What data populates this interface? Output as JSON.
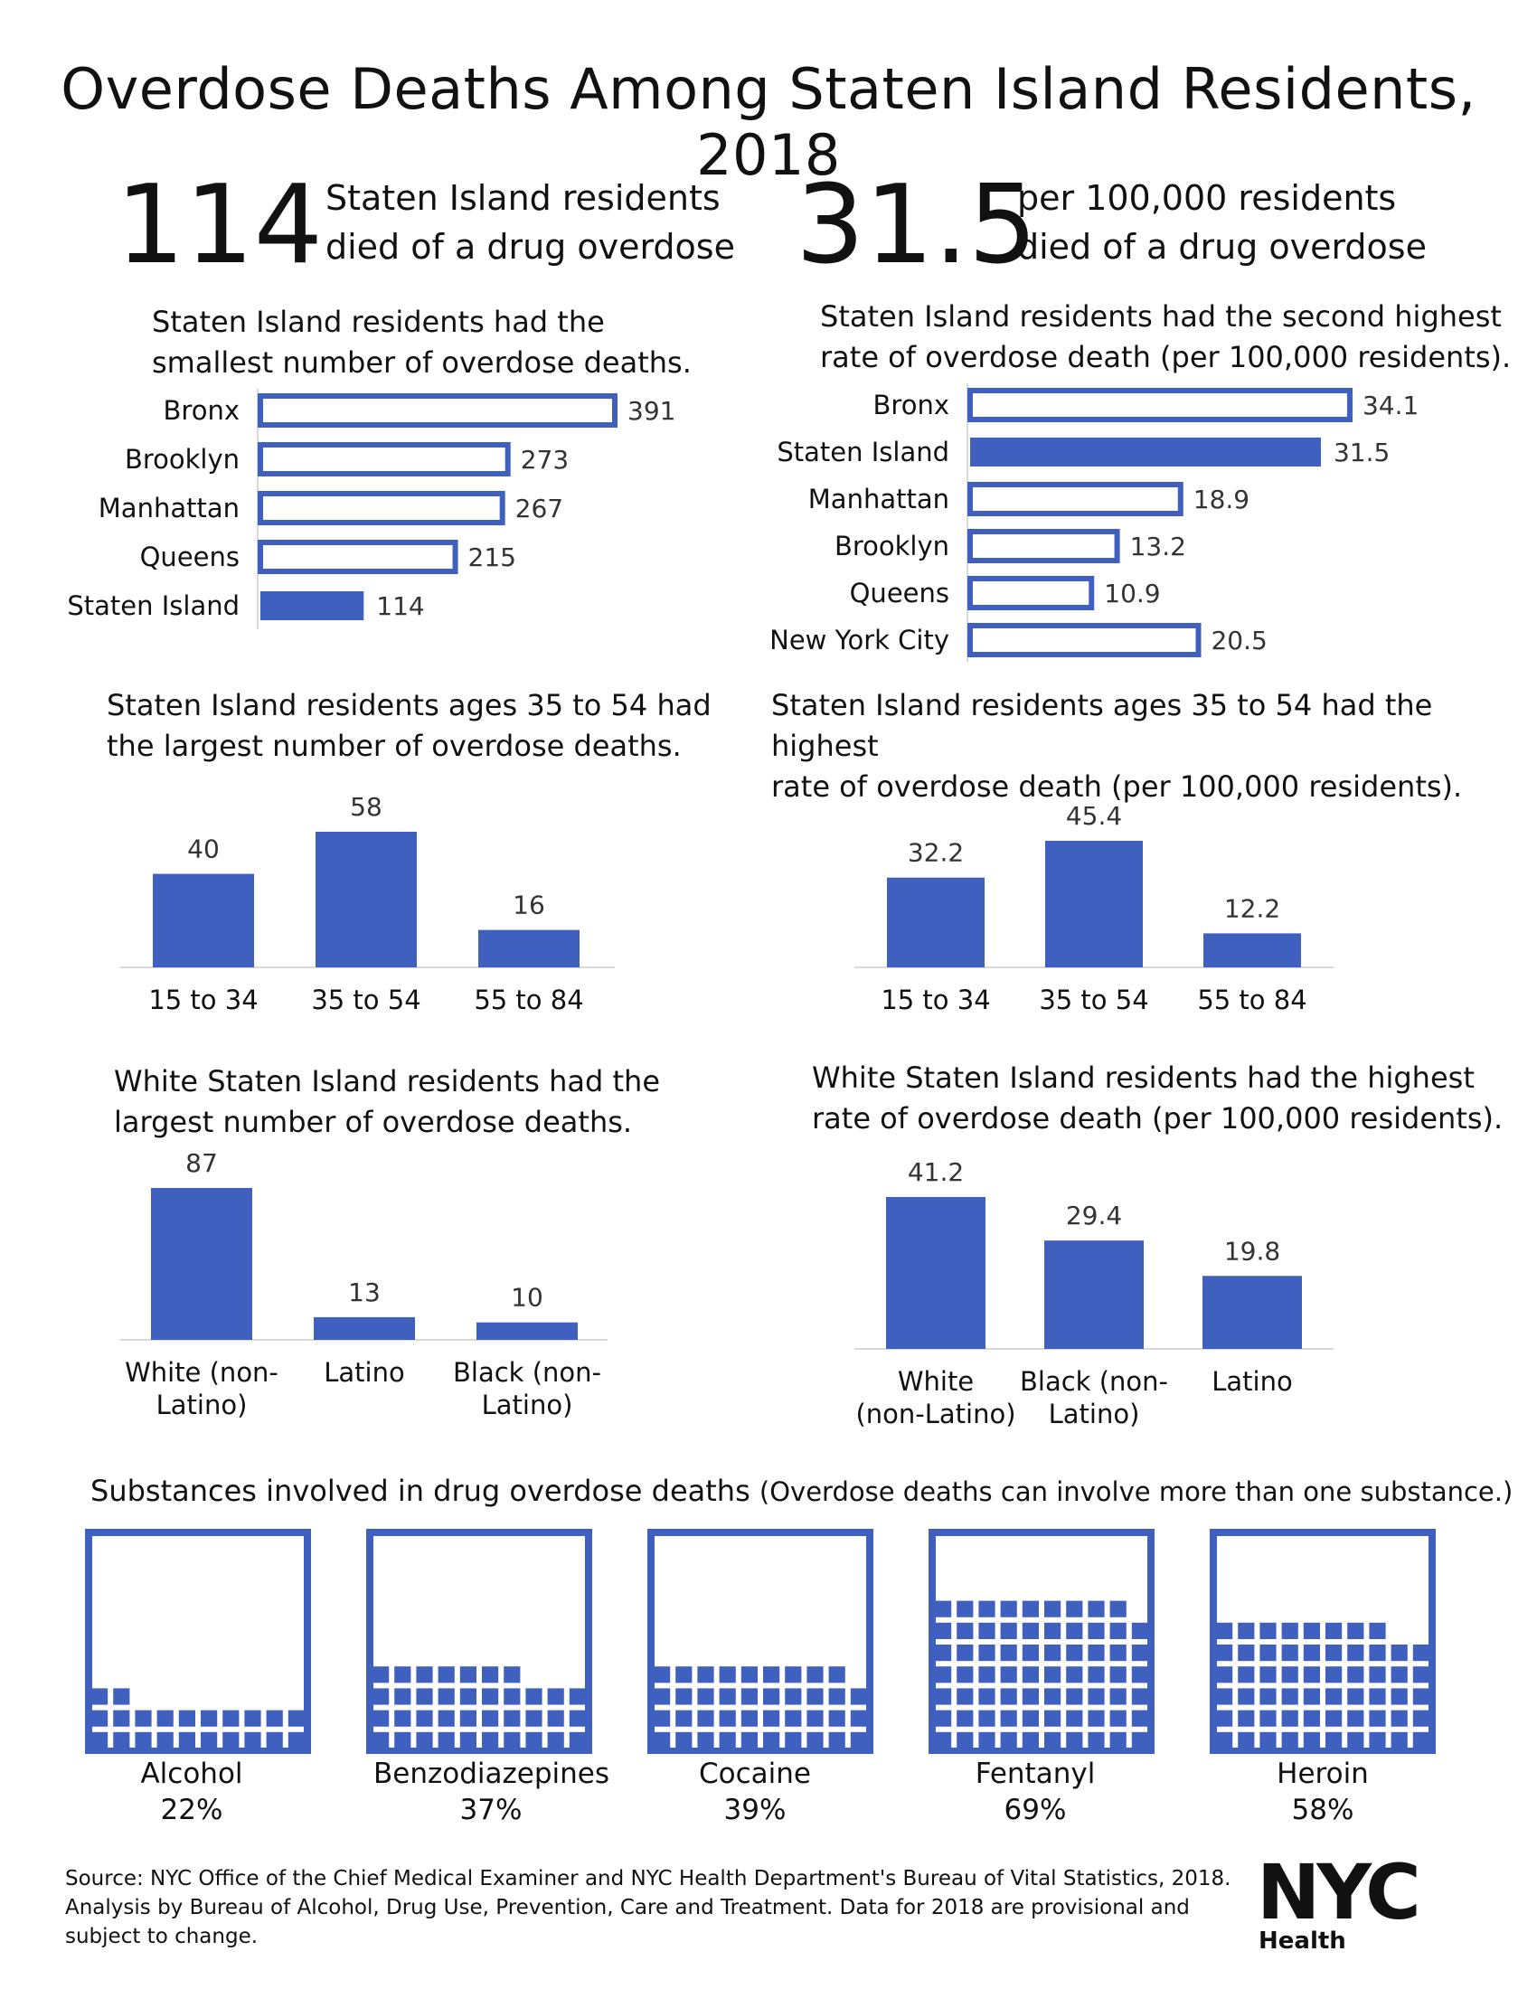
{
  "title": "Overdose Deaths Among Staten Island Residents, 2018",
  "headline_count": {
    "value": "114",
    "text_line1": "Staten Island residents",
    "text_line2": "died of a drug overdose"
  },
  "headline_rate": {
    "value": "31.5",
    "text_line1": "per 100,000 residents",
    "text_line2": "died of a drug overdose"
  },
  "colors": {
    "accent": "#4060C0",
    "axis": "#D9D9D9"
  },
  "chart_data": [
    {
      "id": "borough_count",
      "type": "bar",
      "orientation": "horizontal",
      "title_lines": [
        "Staten Island residents had the",
        "smallest number of overdose deaths."
      ],
      "categories": [
        "Bronx",
        "Brooklyn",
        "Manhattan",
        "Queens",
        "Staten Island"
      ],
      "values": [
        391,
        273,
        267,
        215,
        114
      ],
      "labels": [
        "391",
        "273",
        "267",
        "215",
        "114"
      ],
      "highlight": "Staten Island",
      "xlim": [
        0,
        391
      ]
    },
    {
      "id": "borough_rate",
      "type": "bar",
      "orientation": "horizontal",
      "title_lines": [
        "Staten Island residents had the second highest",
        "rate of overdose death (per 100,000 residents)."
      ],
      "categories": [
        "Bronx",
        "Staten Island",
        "Manhattan",
        "Brooklyn",
        "Queens",
        "New York City"
      ],
      "values": [
        34.1,
        31.5,
        18.9,
        13.2,
        10.9,
        20.5
      ],
      "labels": [
        "34.1",
        "31.5",
        "18.9",
        "13.2",
        "10.9",
        "20.5"
      ],
      "highlight": "Staten Island",
      "xlim": [
        0,
        34.1
      ]
    },
    {
      "id": "age_count",
      "type": "bar",
      "orientation": "vertical",
      "title_lines": [
        "Staten Island residents ages 35 to 54 had",
        "the largest number of overdose deaths."
      ],
      "categories": [
        [
          "15 to 34"
        ],
        [
          "35 to 54"
        ],
        [
          "55 to 84"
        ]
      ],
      "values": [
        40,
        58,
        16
      ],
      "labels": [
        "40",
        "58",
        "16"
      ],
      "ylim": [
        0,
        58
      ]
    },
    {
      "id": "age_rate",
      "type": "bar",
      "orientation": "vertical",
      "title_lines": [
        "Staten Island residents ages 35 to 54 had the highest",
        "rate of overdose death (per 100,000 residents)."
      ],
      "categories": [
        [
          "15 to 34"
        ],
        [
          "35 to 54"
        ],
        [
          "55 to 84"
        ]
      ],
      "values": [
        32.2,
        45.4,
        12.2
      ],
      "labels": [
        "32.2",
        "45.4",
        "12.2"
      ],
      "ylim": [
        0,
        45.4
      ]
    },
    {
      "id": "race_count",
      "type": "bar",
      "orientation": "vertical",
      "title_lines": [
        "White Staten Island residents had the",
        "largest number of overdose deaths."
      ],
      "categories": [
        [
          "White (non-",
          "Latino)"
        ],
        [
          "Latino"
        ],
        [
          "Black (non-",
          "Latino)"
        ]
      ],
      "values": [
        87,
        13,
        10
      ],
      "labels": [
        "87",
        "13",
        "10"
      ],
      "ylim": [
        0,
        87
      ]
    },
    {
      "id": "race_rate",
      "type": "bar",
      "orientation": "vertical",
      "title_lines": [
        "White Staten Island residents had the highest",
        "rate of overdose death (per 100,000 residents)."
      ],
      "categories": [
        [
          "White",
          "(non-Latino)"
        ],
        [
          "Black (non-",
          "Latino)"
        ],
        [
          "Latino"
        ]
      ],
      "values": [
        41.2,
        29.4,
        19.8
      ],
      "labels": [
        "41.2",
        "29.4",
        "19.8"
      ],
      "ylim": [
        0,
        41.2
      ]
    }
  ],
  "substances": {
    "title": "Substances involved in drug overdose deaths",
    "note": "(Overdose deaths can involve more than one substance.)",
    "items": [
      {
        "name": "Alcohol",
        "percent": 22,
        "label": "22%"
      },
      {
        "name": "Benzodiazepines",
        "percent": 37,
        "label": "37%"
      },
      {
        "name": "Cocaine",
        "percent": 39,
        "label": "39%"
      },
      {
        "name": "Fentanyl",
        "percent": 69,
        "label": "69%"
      },
      {
        "name": "Heroin",
        "percent": 58,
        "label": "58%"
      }
    ]
  },
  "footer": {
    "source": "Source: NYC Office of the Chief Medical Examiner and NYC Health Department's Bureau of Vital Statistics, 2018. Analysis by Bureau of Alcohol, Drug Use, Prevention, Care and Treatment. Data for 2018 are provisional and subject to change.",
    "logo_text": "NYC",
    "logo_subtext": "Health"
  }
}
